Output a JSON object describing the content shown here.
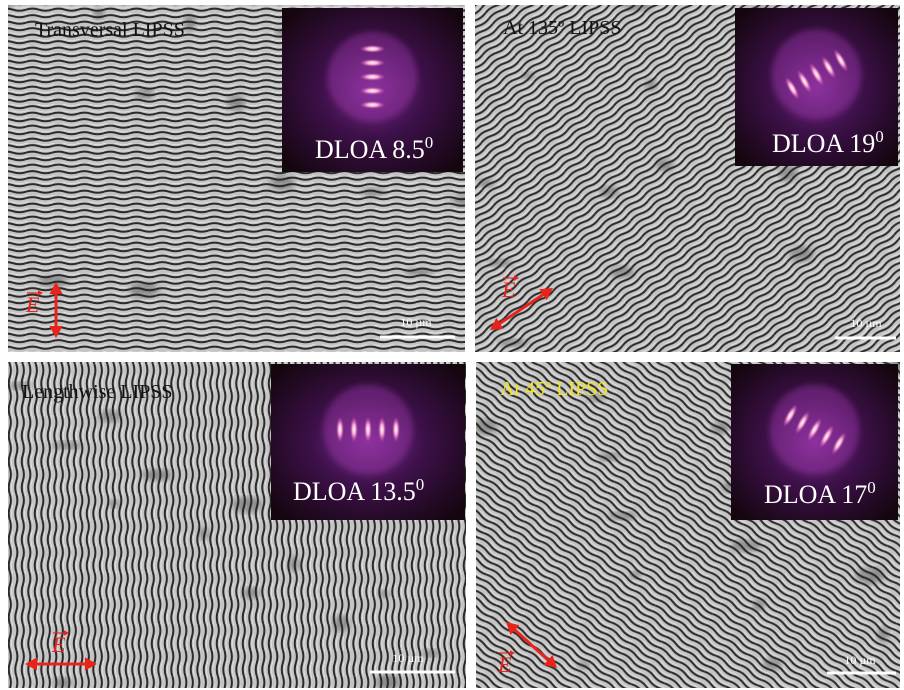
{
  "panels": [
    {
      "title": "Transversal LIPSS",
      "dloa": "DLOA 8.5",
      "dloa_sup": "0",
      "field": "E",
      "scale_bar": "10 µm"
    },
    {
      "title": "At 135º LIPSS",
      "dloa": "DLOA 19",
      "dloa_sup": "0",
      "field": "E",
      "scale_bar": "10 µm"
    },
    {
      "title": "Lengthwise LIPSS",
      "dloa": "DLOA 13.5",
      "dloa_sup": "0",
      "field": "E",
      "scale_bar": "10 µm"
    },
    {
      "title": "At 45º LIPSS",
      "dloa": "DLOA 17",
      "dloa_sup": "0",
      "field": "E",
      "scale_bar": "10 µm"
    }
  ]
}
